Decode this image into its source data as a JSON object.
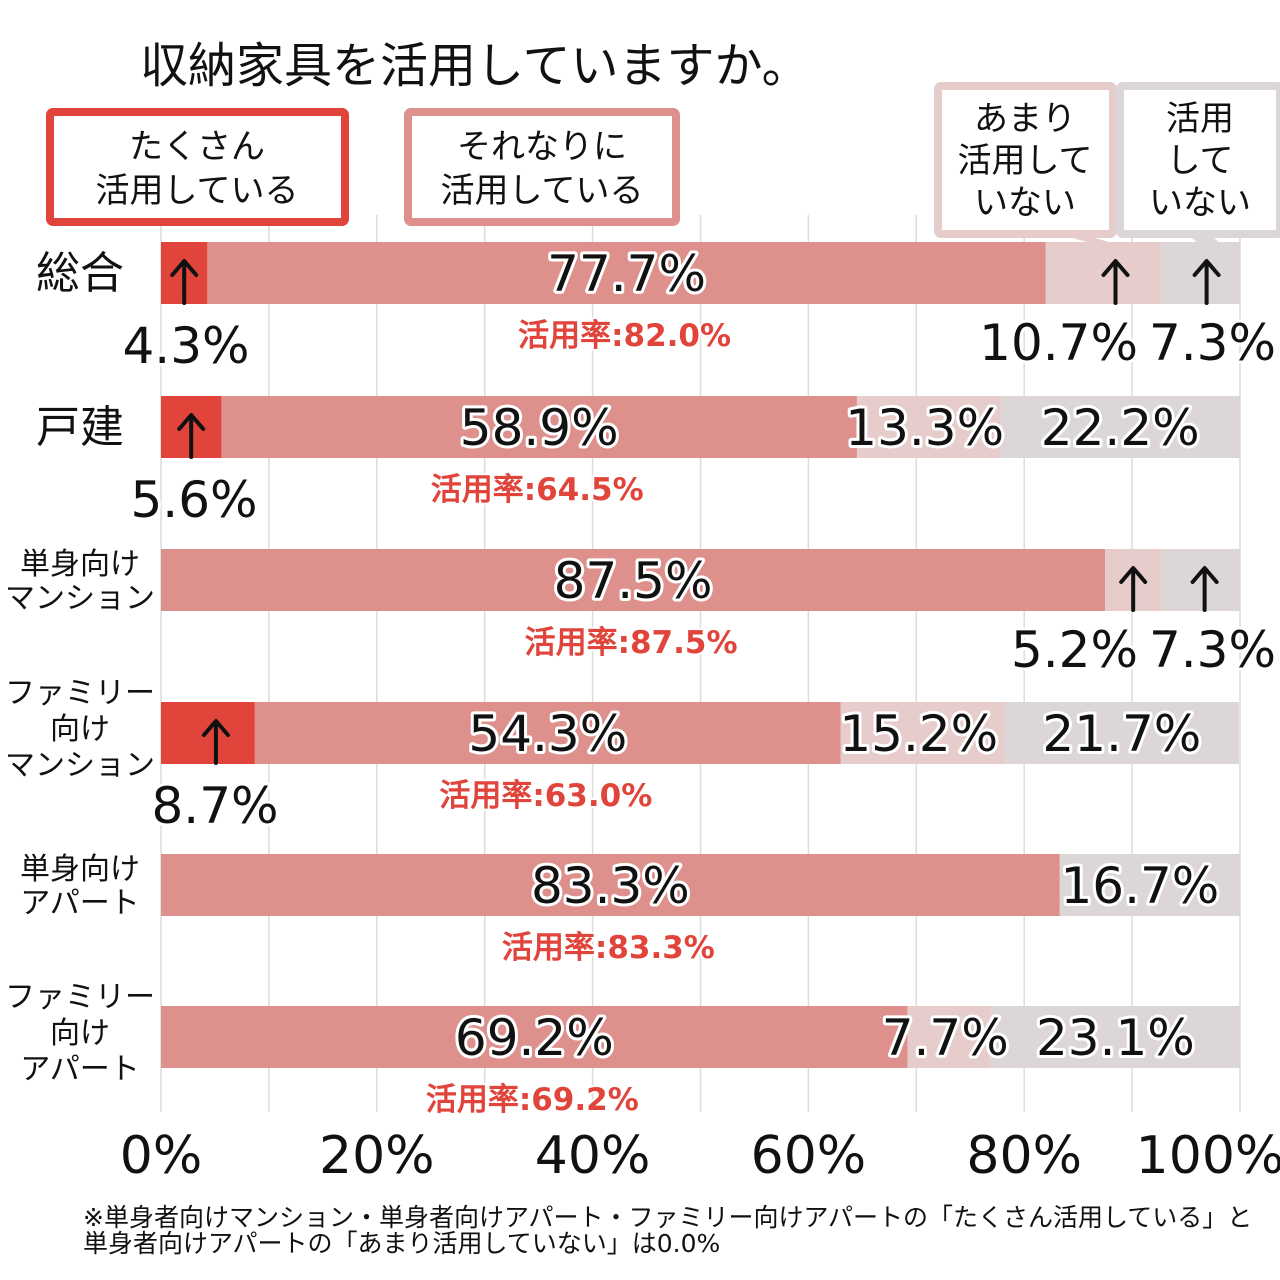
{
  "chart_data": {
    "type": "bar",
    "orientation": "horizontal",
    "stacked": true,
    "title": "収納家具を活用していますか。",
    "categories": [
      "総合",
      "戸建",
      "単身向け\nマンション",
      "ファミリー\n向け\nマンション",
      "単身向け\nアパート",
      "ファミリー\n向け\nアパート"
    ],
    "series": [
      {
        "name": "たくさん\n活用している",
        "color": "#e0443a",
        "values": [
          4.3,
          5.6,
          0.0,
          8.7,
          0.0,
          0.0
        ]
      },
      {
        "name": "それなりに\n活用している",
        "color": "#de918c",
        "values": [
          77.7,
          58.9,
          87.5,
          54.3,
          83.3,
          69.2
        ]
      },
      {
        "name": "あまり\n活用して\nいない",
        "color": "#e6cccb",
        "values": [
          10.7,
          13.3,
          5.2,
          15.2,
          0.0,
          7.7
        ]
      },
      {
        "name": "活用\nして\nいない",
        "color": "#ddd6d6",
        "values": [
          7.3,
          22.2,
          7.3,
          21.7,
          16.7,
          23.1
        ]
      }
    ],
    "usage_rates": [
      "活用率:82.0%",
      "活用率:64.5%",
      "活用率:87.5%",
      "活用率:63.0%",
      "活用率:83.3%",
      "活用率:69.2%"
    ],
    "value_labels": [
      [
        "4.3%",
        "77.7%",
        "10.7%",
        "7.3%"
      ],
      [
        "5.6%",
        "58.9%",
        "13.3%",
        "22.2%"
      ],
      [
        "",
        "87.5%",
        "5.2%",
        "7.3%"
      ],
      [
        "8.7%",
        "54.3%",
        "15.2%",
        "21.7%"
      ],
      [
        "",
        "83.3%",
        "",
        "16.7%"
      ],
      [
        "",
        "69.2%",
        "7.7%",
        "23.1%"
      ]
    ],
    "xlim": [
      0,
      100
    ],
    "x_ticks": [
      "0%",
      "20%",
      "40%",
      "60%",
      "80%",
      "100%"
    ],
    "grid": true,
    "legend_position": "top",
    "footnote": [
      "※単身者向けマンション・単身者向けアパート・ファミリー向けアパートの「たくさん活用している」と",
      "単身者向けアパートの「あまり活用していない」は0.0%"
    ]
  }
}
